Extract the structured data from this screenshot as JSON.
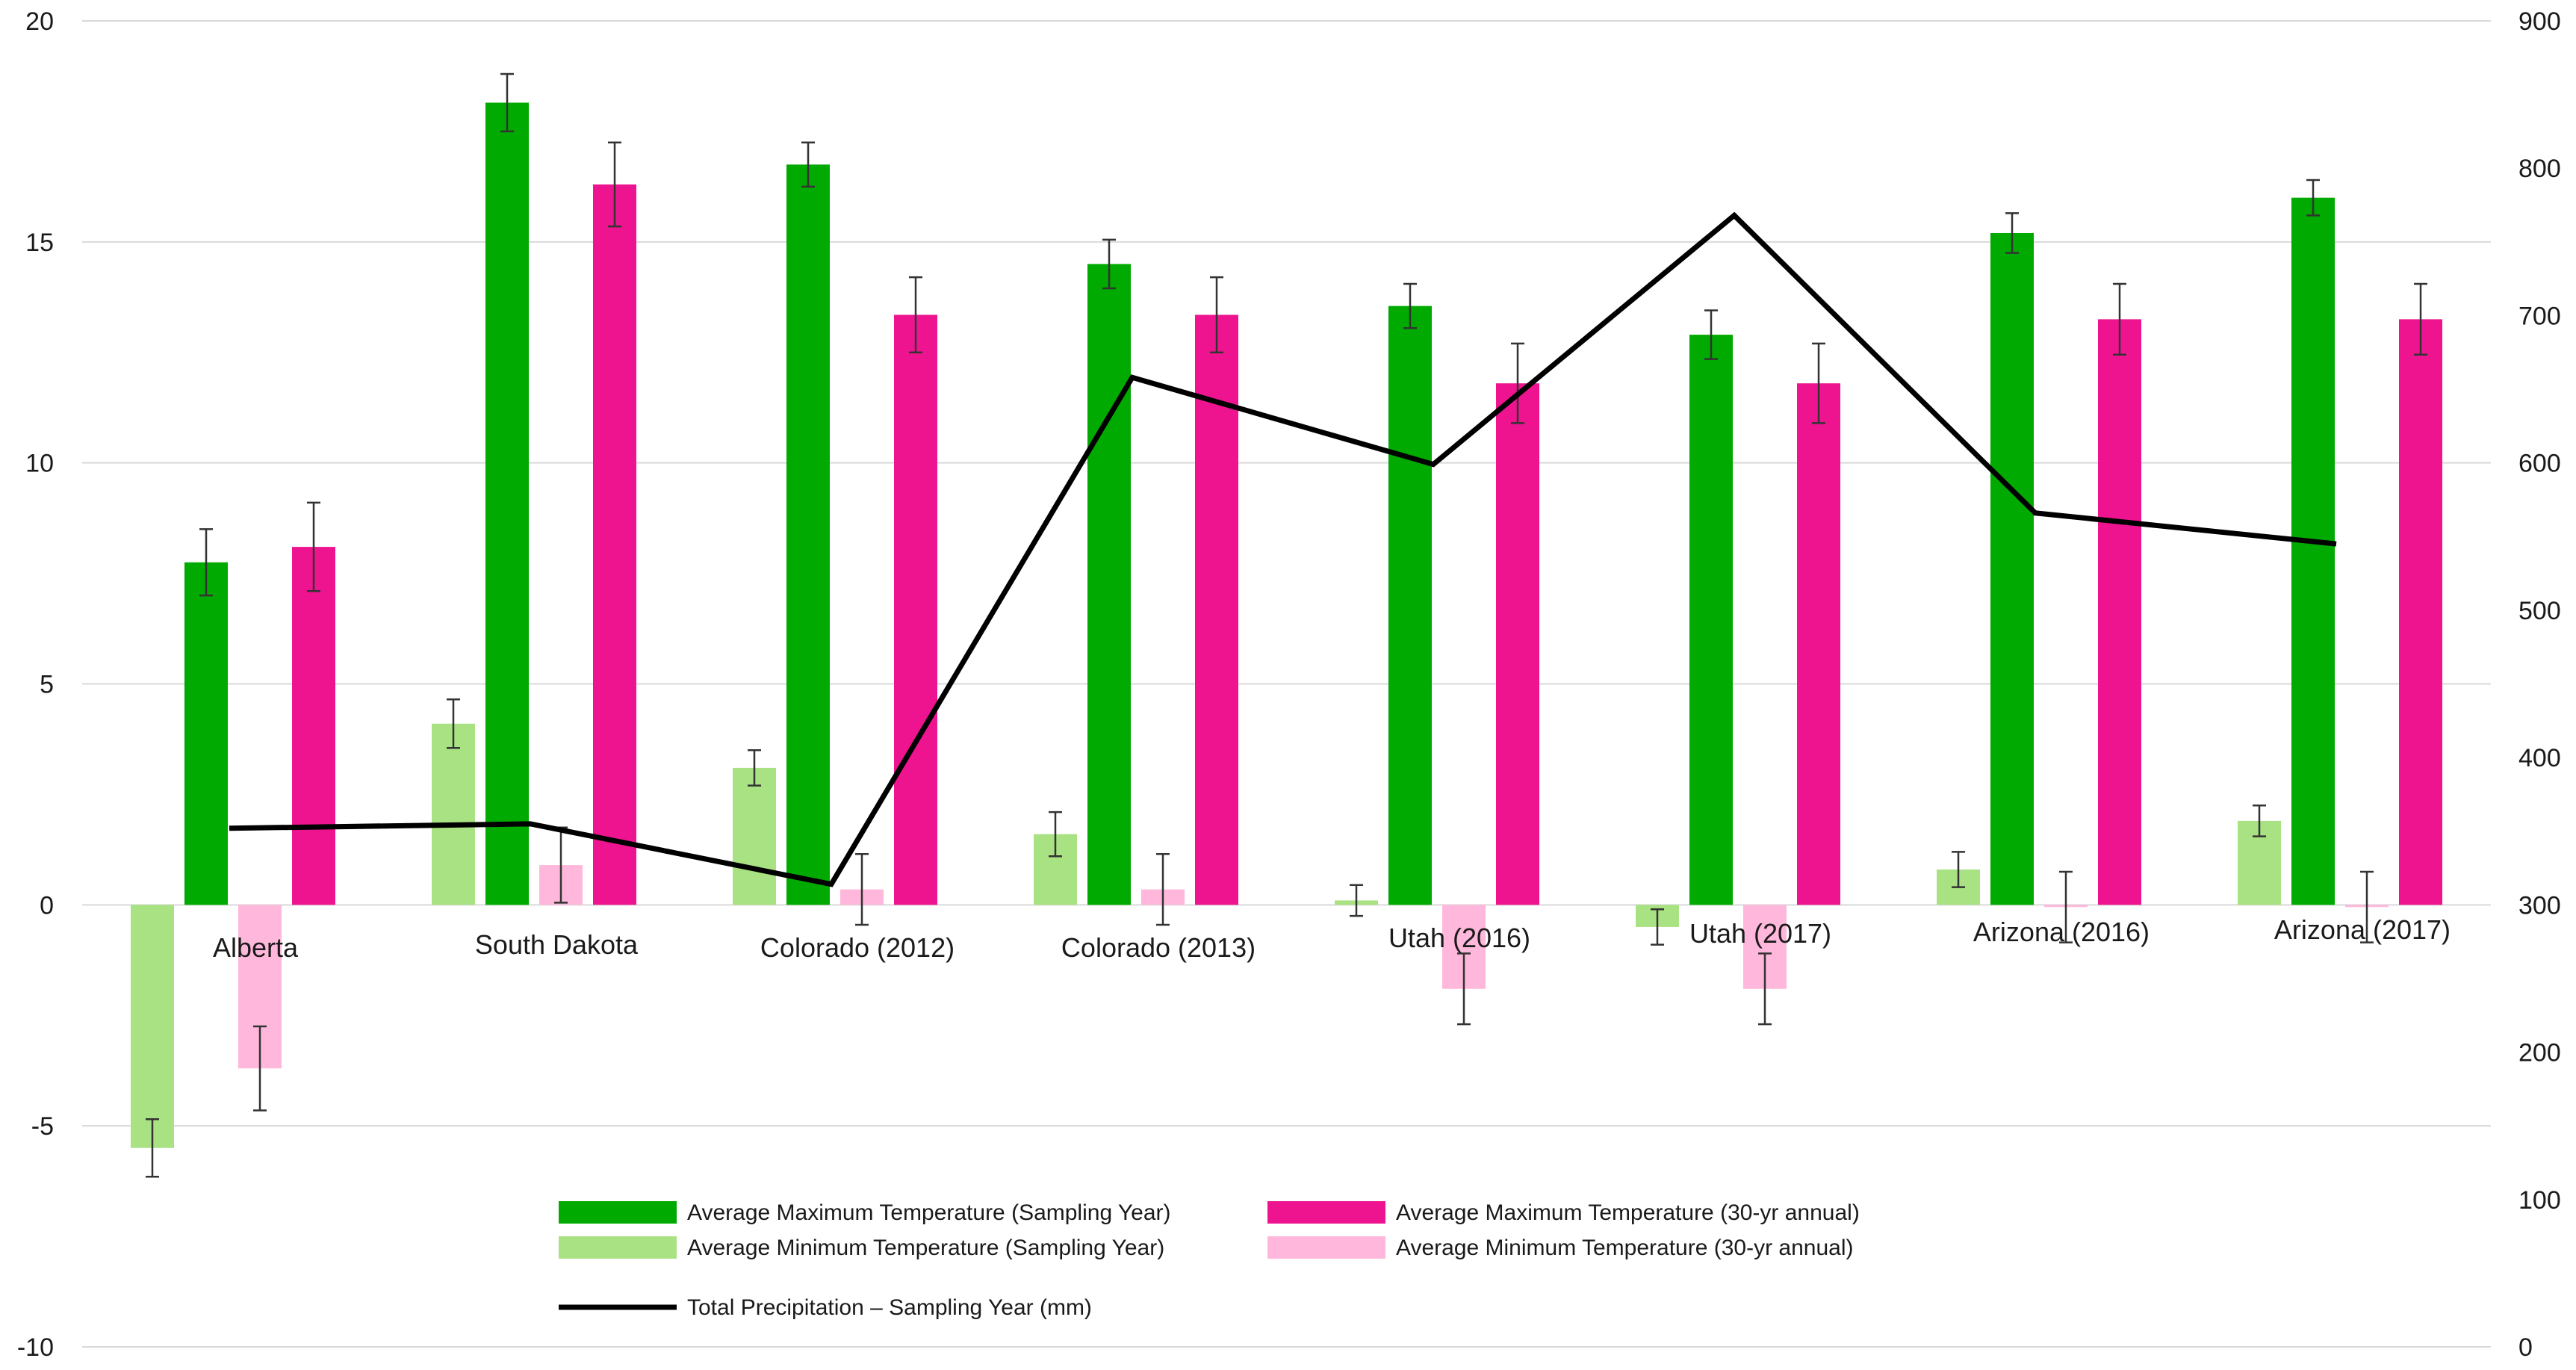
{
  "chart_data": {
    "type": "bar",
    "title": "",
    "xlabel": "",
    "ylabel": "",
    "y2label": "",
    "grid": true,
    "legend_position": "bottom-center",
    "categories": [
      "Alberta",
      "South Dakota",
      "Colorado (2012)",
      "Colorado (2013)",
      "Utah (2016)",
      "Utah (2017)",
      "Arizona (2016)",
      "Arizona (2017)"
    ],
    "ylim": [
      -10,
      20
    ],
    "y_ticks": [
      "-10",
      "-5",
      "0",
      "5",
      "10",
      "15",
      "20"
    ],
    "y2lim": [
      0,
      900
    ],
    "y2_ticks": [
      "0",
      "100",
      "200",
      "300",
      "400",
      "500",
      "600",
      "700",
      "800",
      "900"
    ],
    "series": [
      {
        "name": "Average Minimum Temperature (Sampling Year)",
        "kind": "bar",
        "axis": "left",
        "color": "#a9e283",
        "values": [
          -5.5,
          4.1,
          3.1,
          1.6,
          0.1,
          -0.5,
          0.8,
          1.9
        ],
        "errors": [
          0.65,
          0.55,
          0.4,
          0.5,
          0.35,
          0.4,
          0.4,
          0.35
        ]
      },
      {
        "name": "Average Maximum Temperature (Sampling Year)",
        "kind": "bar",
        "axis": "left",
        "color": "#00aa00",
        "values": [
          7.75,
          18.15,
          16.75,
          14.5,
          13.55,
          12.9,
          15.2,
          16.0
        ],
        "errors": [
          0.75,
          0.65,
          0.5,
          0.55,
          0.5,
          0.55,
          0.45,
          0.4
        ]
      },
      {
        "name": "Average Minimum Temperature (30-yr annual)",
        "kind": "bar",
        "axis": "left",
        "color": "#ffb8dc",
        "values": [
          -3.7,
          0.9,
          0.35,
          0.35,
          -1.9,
          -1.9,
          -0.05,
          -0.05
        ],
        "errors": [
          0.95,
          0.85,
          0.8,
          0.8,
          0.8,
          0.8,
          0.8,
          0.8
        ]
      },
      {
        "name": "Average Maximum Temperature (30-yr annual)",
        "kind": "bar",
        "axis": "left",
        "color": "#ee1490",
        "values": [
          8.1,
          16.3,
          13.35,
          13.35,
          11.8,
          11.8,
          13.25,
          13.25
        ],
        "errors": [
          1.0,
          0.95,
          0.85,
          0.85,
          0.9,
          0.9,
          0.8,
          0.8
        ]
      },
      {
        "name": "Total Precipitation – Sampling Year (mm)",
        "kind": "line",
        "axis": "right",
        "color": "#000000",
        "values": [
          352,
          355,
          314,
          658,
          599,
          768,
          566,
          545
        ]
      }
    ],
    "legend": [
      {
        "label": "Average Maximum Temperature (Sampling Year)",
        "color": "#00aa00",
        "kind": "bar"
      },
      {
        "label": "Average Maximum Temperature (30-yr annual)",
        "color": "#ee1490",
        "kind": "bar"
      },
      {
        "label": "Average Minimum Temperature (Sampling Year)",
        "color": "#a9e283",
        "kind": "bar"
      },
      {
        "label": "Average Minimum Temperature (30-yr annual)",
        "color": "#ffb8dc",
        "kind": "bar"
      },
      {
        "label": "Total Precipitation – Sampling Year (mm)",
        "color": "#000000",
        "kind": "line"
      }
    ]
  }
}
